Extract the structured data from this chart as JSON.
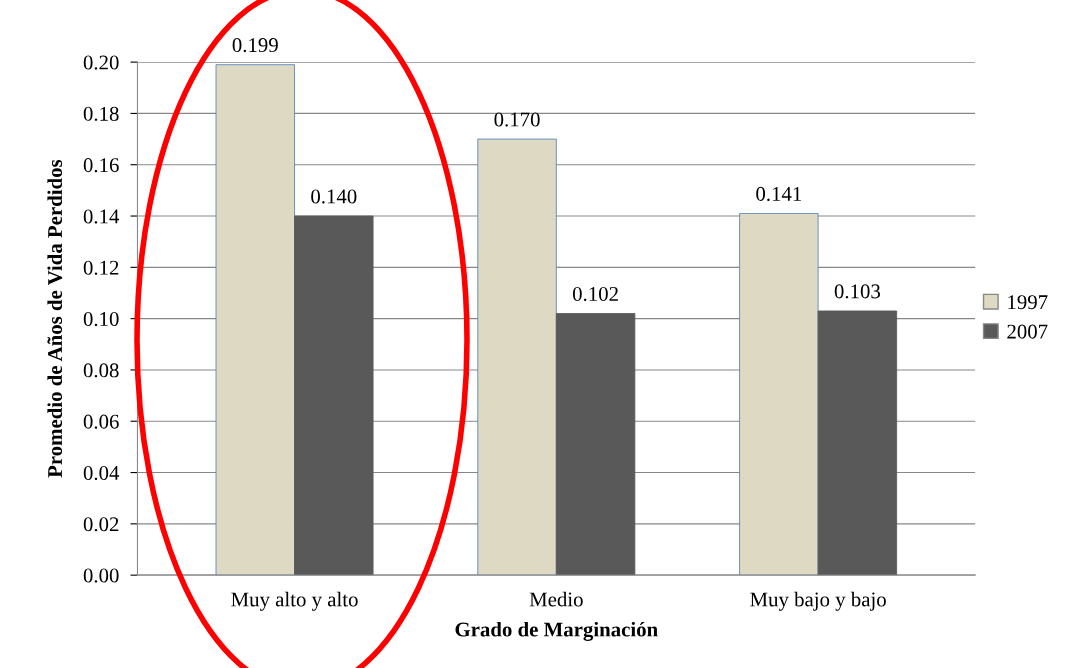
{
  "chart_data": {
    "type": "bar",
    "xlabel": "Grado de Marginación",
    "ylabel": "Promedio de Años de Vida Perdidos",
    "categories": [
      "Muy alto y alto",
      "Medio",
      "Muy bajo y bajo"
    ],
    "series": [
      {
        "name": "1997",
        "color": "#ddd9c3",
        "values": [
          0.199,
          0.17,
          0.141
        ],
        "value_labels": [
          "0.199",
          "0.170",
          "0.141"
        ]
      },
      {
        "name": "2007",
        "color": "#595959",
        "values": [
          0.14,
          0.102,
          0.103
        ],
        "value_labels": [
          "0.140",
          "0.102",
          "0.103"
        ]
      }
    ],
    "ylim": [
      0,
      0.2
    ],
    "yticks": [
      {
        "value": 0,
        "label": "0.00"
      },
      {
        "value": 0.02,
        "label": "0.02"
      },
      {
        "value": 0.04,
        "label": "0.04"
      },
      {
        "value": 0.06,
        "label": "0.06"
      },
      {
        "value": 0.08,
        "label": "0.08"
      },
      {
        "value": 0.1,
        "label": "0.10"
      },
      {
        "value": 0.12,
        "label": "0.12"
      },
      {
        "value": 0.14,
        "label": "0.14"
      },
      {
        "value": 0.16,
        "label": "0.16"
      },
      {
        "value": 0.18,
        "label": "0.18"
      },
      {
        "value": 0.2,
        "label": "0.20"
      }
    ],
    "grid": "y",
    "legend": "right"
  }
}
